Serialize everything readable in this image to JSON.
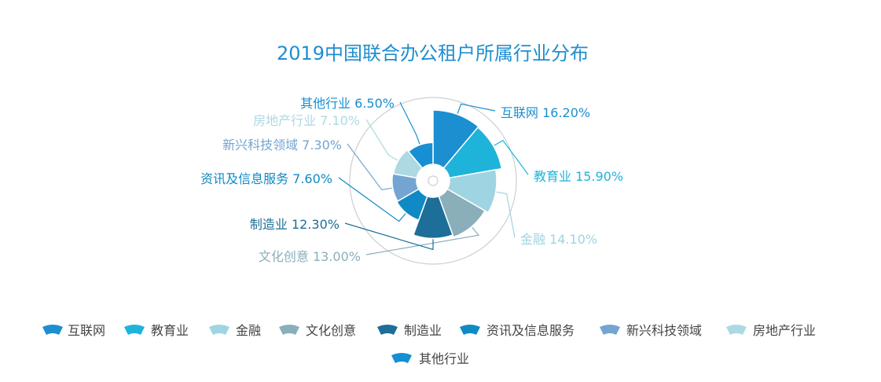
{
  "chart_data": {
    "type": "pie",
    "subtype": "rose",
    "title": "2019中国联合办公租户所属行业分布",
    "categories": [
      "互联网",
      "教育业",
      "金融",
      "文化创意",
      "制造业",
      "资讯及信息服务",
      "新兴科技领域",
      "房地产行业",
      "其他行业"
    ],
    "values": [
      16.2,
      15.9,
      14.1,
      13.0,
      12.3,
      7.6,
      7.3,
      7.1,
      6.5
    ],
    "data_labels": [
      "互联网 16.20%",
      "教育业 15.90%",
      "金融 14.10%",
      "文化创意 13.00%",
      "制造业 12.30%",
      "资讯及信息服务 7.60%",
      "新兴科技领域 7.30%",
      "房地产行业 7.10%",
      "其他行业 6.50%"
    ],
    "colors": [
      "#1b8fd0",
      "#1eb4da",
      "#9fd4e2",
      "#8aafbb",
      "#1d6e98",
      "#0f8ac4",
      "#74a5d1",
      "#add9e3",
      "#168fd3"
    ],
    "legend_position": "bottom",
    "grid": false
  }
}
